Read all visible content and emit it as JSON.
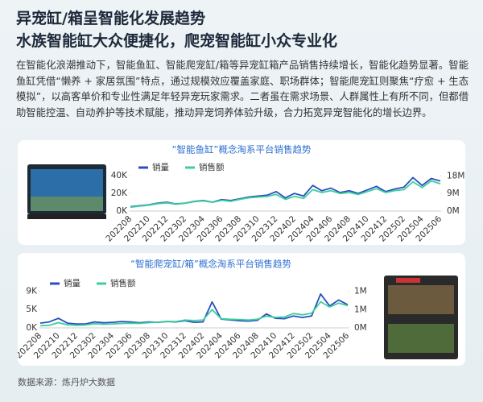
{
  "header": {
    "title": [
      "异宠缸/箱呈智能化发展趋势",
      "水族智能缸大众便捷化，爬宠智能缸小众专业化"
    ],
    "body": "在智能化浪潮推动下，智能鱼缸、智能爬宠缸/箱等异宠缸箱产品销售持续增长，智能化趋势显著。智能鱼缸凭借“懒养 + 家居氛围”特点，通过规模效应覆盖家庭、职场群体；智能爬宠缸则聚焦“疗愈 + 生态模拟”，以高客单价和专业性满足年轻异宠玩家需求。二者虽在需求场景、人群属性上有所不同，但都借助智能控温、自动养护等技术赋能，推动异宠饲养体验升级，合力拓宽异宠智能化的增长边界。"
  },
  "source": "数据来源：炼丹炉大数据",
  "chart_data": [
    {
      "type": "line",
      "title": "“智能鱼缸”概念淘系平台销售趋势",
      "categories": [
        "202208",
        null,
        "202210",
        null,
        "202212",
        null,
        "202302",
        null,
        "202304",
        null,
        "202306",
        null,
        "202308",
        null,
        "202310",
        null,
        "202312",
        null,
        "202402",
        null,
        "202404",
        null,
        "202406",
        null,
        "202408",
        null,
        "202410",
        null,
        "202412",
        null,
        "202502",
        null,
        "202504",
        null,
        "202506"
      ],
      "series": [
        {
          "name": "销量",
          "color": "#2a4fc0",
          "values": [
            5000,
            6000,
            7000,
            9000,
            10000,
            8000,
            9000,
            11000,
            12000,
            10000,
            13000,
            12000,
            14000,
            16000,
            17000,
            18000,
            22000,
            15000,
            20000,
            17000,
            29000,
            23000,
            26000,
            21000,
            23000,
            20000,
            24000,
            28000,
            22000,
            25000,
            27000,
            38000,
            29000,
            37000,
            34000
          ]
        },
        {
          "name": "销售额",
          "color": "#3dcf9c",
          "axis": "y2",
          "values": [
            2000000,
            2500000,
            3000000,
            3800000,
            4200000,
            3500000,
            4000000,
            4800000,
            5200000,
            4500000,
            5500000,
            5000000,
            6000000,
            6800000,
            7200000,
            7500000,
            8500000,
            6000000,
            7500000,
            6500000,
            11000000,
            9500000,
            10500000,
            9000000,
            9500000,
            8500000,
            10000000,
            11500000,
            9500000,
            10500000,
            11000000,
            15000000,
            12000000,
            15500000,
            14000000
          ]
        }
      ],
      "ylim": [
        0,
        42000
      ],
      "yticks": [
        {
          "value": 0,
          "label": "0K"
        },
        {
          "value": 20000,
          "label": "20K"
        },
        {
          "value": 40000,
          "label": "40K"
        }
      ],
      "y2lim": [
        0,
        19000000
      ],
      "y2ticks": [
        {
          "value": 0,
          "label": "0M"
        },
        {
          "value": 9000000,
          "label": "9M"
        },
        {
          "value": 18000000,
          "label": "18M"
        }
      ]
    },
    {
      "type": "line",
      "title": "“智能爬宠缸/箱”概念淘系平台销售趋势",
      "categories": [
        "202208",
        null,
        "202210",
        null,
        "202212",
        null,
        "202302",
        null,
        "202304",
        null,
        "202306",
        null,
        "202308",
        null,
        "202310",
        null,
        "202312",
        null,
        "202402",
        null,
        "202404",
        null,
        "202406",
        null,
        "202408",
        null,
        "202410",
        null,
        "202412",
        null,
        "202502",
        null,
        "202504",
        null,
        "202506"
      ],
      "series": [
        {
          "name": "销量",
          "color": "#2a4fc0",
          "values": [
            1200,
            1500,
            2400,
            1200,
            1000,
            1000,
            1500,
            1300,
            1400,
            1600,
            1500,
            1300,
            1500,
            1400,
            1600,
            1500,
            1800,
            1400,
            1500,
            6500,
            2200,
            2000,
            1800,
            1700,
            1900,
            3500,
            2400,
            2300,
            3000,
            2600,
            3000,
            8500,
            5500,
            7000,
            5800
          ]
        },
        {
          "name": "销售额",
          "color": "#3dcf9c",
          "axis": "y2",
          "values": [
            80000,
            100000,
            200000,
            120000,
            100000,
            110000,
            160000,
            140000,
            150000,
            170000,
            180000,
            170000,
            200000,
            220000,
            250000,
            240000,
            300000,
            280000,
            300000,
            700000,
            350000,
            330000,
            320000,
            300000,
            330000,
            450000,
            400000,
            420000,
            550000,
            500000,
            560000,
            1000000,
            800000,
            950000,
            850000
          ]
        }
      ],
      "ylim": [
        0,
        9500
      ],
      "yticks": [
        {
          "value": 0,
          "label": "0K"
        },
        {
          "value": 4600,
          "label": "5K"
        },
        {
          "value": 9200,
          "label": "9K"
        }
      ],
      "y2lim": [
        0,
        1450000
      ],
      "y2ticks": [
        {
          "value": 0,
          "label": "0M"
        },
        {
          "value": 700000,
          "label": "1M"
        },
        {
          "value": 1400000,
          "label": "1M"
        }
      ]
    }
  ]
}
